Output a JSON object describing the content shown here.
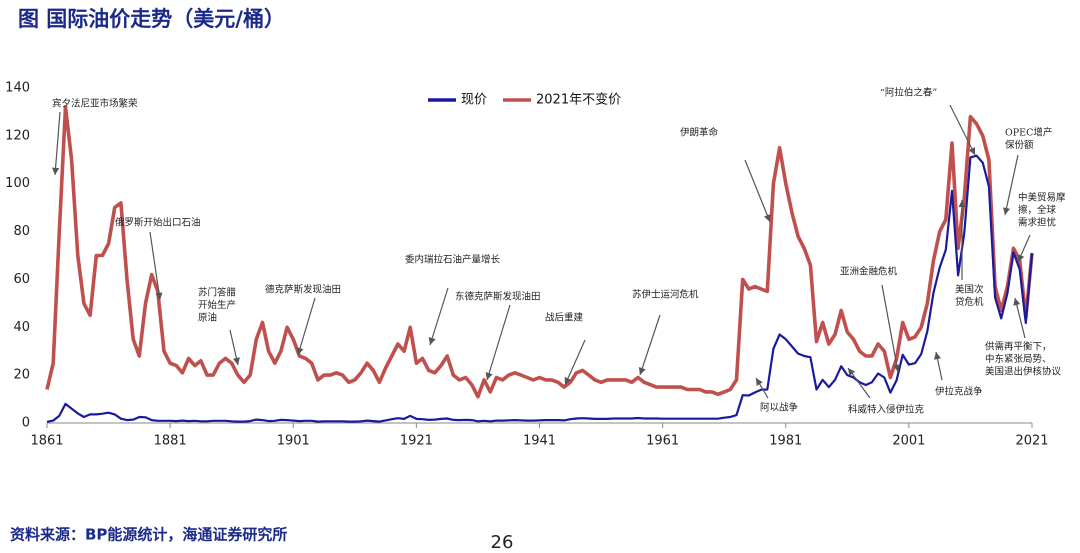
{
  "chart_data": {
    "type": "line",
    "title": "图 国际油价走势（美元/桶）",
    "x": [
      1861,
      1862,
      1863,
      1864,
      1865,
      1866,
      1867,
      1868,
      1869,
      1870,
      1871,
      1872,
      1873,
      1874,
      1875,
      1876,
      1877,
      1878,
      1879,
      1880,
      1881,
      1882,
      1883,
      1884,
      1885,
      1886,
      1887,
      1888,
      1889,
      1890,
      1891,
      1892,
      1893,
      1894,
      1895,
      1896,
      1897,
      1898,
      1899,
      1900,
      1901,
      1902,
      1903,
      1904,
      1905,
      1906,
      1907,
      1908,
      1909,
      1910,
      1911,
      1912,
      1913,
      1914,
      1915,
      1916,
      1917,
      1918,
      1919,
      1920,
      1921,
      1922,
      1923,
      1924,
      1925,
      1926,
      1927,
      1928,
      1929,
      1930,
      1931,
      1932,
      1933,
      1934,
      1935,
      1936,
      1937,
      1938,
      1939,
      1940,
      1941,
      1942,
      1943,
      1944,
      1945,
      1946,
      1947,
      1948,
      1949,
      1950,
      1951,
      1952,
      1953,
      1954,
      1955,
      1956,
      1957,
      1958,
      1959,
      1960,
      1961,
      1962,
      1963,
      1964,
      1965,
      1966,
      1967,
      1968,
      1969,
      1970,
      1971,
      1972,
      1973,
      1974,
      1975,
      1976,
      1977,
      1978,
      1979,
      1980,
      1981,
      1982,
      1983,
      1984,
      1985,
      1986,
      1987,
      1988,
      1989,
      1990,
      1991,
      1992,
      1993,
      1994,
      1995,
      1996,
      1997,
      1998,
      1999,
      2000,
      2001,
      2002,
      2003,
      2004,
      2005,
      2006,
      2007,
      2008,
      2009,
      2010,
      2011,
      2012,
      2013,
      2014,
      2015,
      2016,
      2017,
      2018,
      2019,
      2020,
      2021
    ],
    "series": [
      {
        "name": "现价",
        "color": "#1a1a9c",
        "values": [
          0.5,
          1,
          3,
          8,
          6,
          4,
          2.5,
          3.6,
          3.6,
          3.9,
          4.3,
          3.6,
          1.8,
          1.2,
          1.4,
          2.5,
          2.4,
          1.2,
          0.9,
          0.9,
          0.9,
          0.8,
          1,
          0.8,
          0.9,
          0.7,
          0.7,
          0.9,
          0.9,
          0.9,
          0.7,
          0.6,
          0.6,
          0.8,
          1.4,
          1.2,
          0.8,
          0.9,
          1.3,
          1.2,
          1,
          0.8,
          0.9,
          0.9,
          0.6,
          0.7,
          0.7,
          0.7,
          0.7,
          0.6,
          0.6,
          0.7,
          1,
          0.8,
          0.6,
          1.1,
          1.6,
          2,
          1.7,
          3,
          1.7,
          1.6,
          1.3,
          1.4,
          1.7,
          1.9,
          1.3,
          1.2,
          1.3,
          1.2,
          0.7,
          0.9,
          0.7,
          1,
          1,
          1.1,
          1.2,
          1.1,
          1,
          1,
          1.1,
          1.2,
          1.2,
          1.2,
          1.1,
          1.6,
          1.9,
          2,
          1.9,
          1.7,
          1.7,
          1.7,
          1.9,
          1.9,
          1.9,
          1.9,
          2.1,
          1.9,
          1.9,
          1.9,
          1.8,
          1.8,
          1.8,
          1.8,
          1.8,
          1.8,
          1.8,
          1.8,
          1.8,
          1.8,
          2.2,
          2.5,
          3.3,
          11.6,
          11.5,
          12.8,
          13.9,
          14,
          31,
          37,
          35,
          32,
          29,
          28,
          27.5,
          14,
          18,
          15,
          18,
          23.7,
          20,
          19,
          17,
          15.9,
          17,
          20.7,
          19,
          12.7,
          17.9,
          28.5,
          24.4,
          25,
          28.8,
          38.3,
          54.5,
          65,
          72.4,
          97,
          61.7,
          79.5,
          111,
          111.7,
          108.7,
          98.9,
          52.4,
          43.7,
          54.2,
          71.3,
          64.2,
          41.8,
          70.9
        ]
      },
      {
        "name": "2021年不变价",
        "color": "#c0504d",
        "values": [
          14,
          25,
          80,
          132,
          110,
          70,
          50,
          45,
          70,
          70,
          75,
          90,
          92,
          60,
          35,
          28,
          50,
          62,
          55,
          30,
          25,
          24,
          21,
          27,
          24,
          26,
          20,
          20,
          25,
          27,
          25,
          20,
          17,
          20,
          35,
          42,
          30,
          25,
          30,
          40,
          35,
          28,
          27,
          25,
          18,
          20,
          20,
          21,
          20,
          17,
          18,
          21,
          25,
          22,
          17,
          23,
          28,
          33,
          30,
          40,
          25,
          27,
          22,
          21,
          24,
          28,
          20,
          18,
          19,
          16,
          11,
          18,
          13,
          19,
          18,
          20,
          21,
          20,
          19,
          18,
          19,
          18,
          18,
          17,
          15,
          17,
          21,
          22,
          20,
          18,
          17,
          18,
          18,
          18,
          18,
          17,
          19,
          17,
          16,
          15,
          15,
          15,
          15,
          15,
          14,
          14,
          14,
          13,
          13,
          12,
          13,
          14,
          18,
          60,
          56,
          57,
          56,
          55,
          100,
          115,
          100,
          88,
          78,
          73,
          66,
          34,
          42,
          33,
          37,
          47,
          38,
          35,
          30,
          28,
          28,
          33,
          30,
          19,
          27,
          42,
          35,
          36,
          40,
          50,
          68,
          80,
          85,
          117,
          73,
          94,
          128,
          125,
          120,
          110,
          57,
          47,
          57,
          73,
          68,
          44,
          71
        ]
      }
    ],
    "xlim": [
      1861,
      2021
    ],
    "xticks": [
      1861,
      1881,
      1901,
      1921,
      1941,
      1961,
      1981,
      2001,
      2021
    ],
    "ylim": [
      0,
      140
    ],
    "yticks": [
      0,
      20,
      40,
      60,
      80,
      100,
      120,
      140
    ],
    "grid": false,
    "legend": "top",
    "annotations": [
      [
        "宾夕法尼亚市场繁荣"
      ],
      [
        "俄罗斯开始出口石油"
      ],
      [
        "苏门答腊",
        "开始生产",
        "原油"
      ],
      [
        "德克萨斯发现油田"
      ],
      [
        "委内瑞拉石油产量增长"
      ],
      [
        "东德克萨斯发现油田"
      ],
      [
        "战后重建"
      ],
      [
        "苏伊士运河危机"
      ],
      [
        "伊朗革命"
      ],
      [
        "阿以战争"
      ],
      [
        "亚洲金融危机"
      ],
      [
        "科威特入侵伊拉克"
      ],
      [
        "“阿拉伯之春”"
      ],
      [
        "OPEC增产",
        "保份额"
      ],
      [
        "中美贸易摩",
        "擦，全球",
        "需求担忧"
      ],
      [
        "美国次",
        "贷危机"
      ],
      [
        "伊拉克战争"
      ],
      [
        "供需再平衡下，",
        "中东紧张局势、",
        "美国退出伊核协议"
      ]
    ],
    "source": "资料来源：BP能源统计，海通证券研究所",
    "page_number": "26"
  }
}
